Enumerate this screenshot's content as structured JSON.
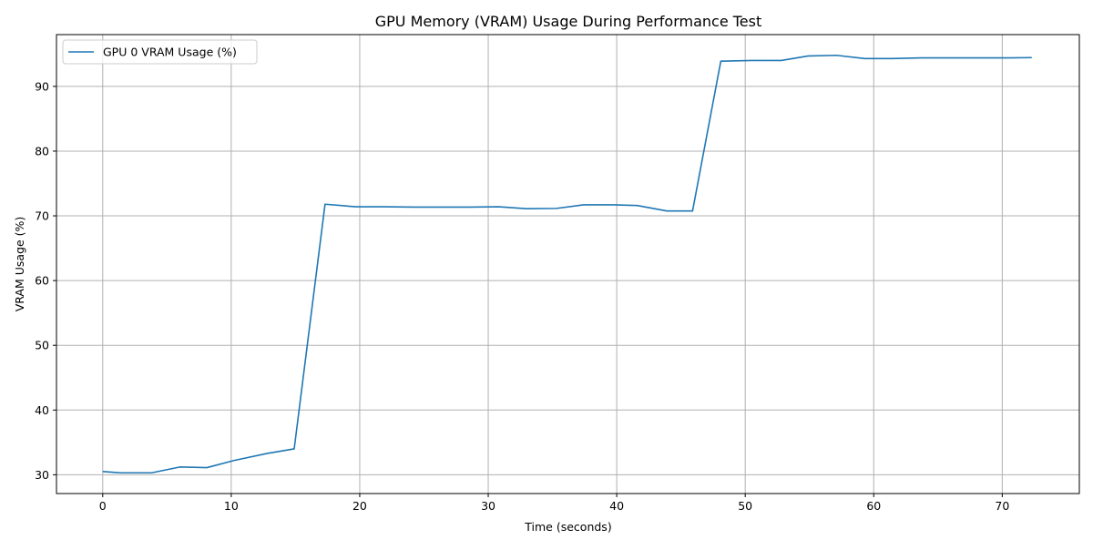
{
  "chart_data": {
    "type": "line",
    "title": "GPU Memory (VRAM) Usage During Performance Test",
    "xlabel": "Time (seconds)",
    "ylabel": "VRAM Usage (%)",
    "xlim": [
      -3.6,
      76.0
    ],
    "ylim": [
      27.1,
      98.0
    ],
    "xticks": [
      0,
      10,
      20,
      30,
      40,
      50,
      60,
      70
    ],
    "yticks": [
      30,
      40,
      50,
      60,
      70,
      80,
      90
    ],
    "grid": true,
    "legend_position": "top-left",
    "series": [
      {
        "name": "GPU 0 VRAM Usage (%)",
        "color": "#1f77b4",
        "x": [
          0.0,
          1.4,
          3.8,
          6.0,
          8.1,
          10.2,
          12.8,
          14.9,
          17.3,
          19.7,
          21.9,
          24.2,
          26.5,
          28.6,
          30.8,
          33.0,
          35.3,
          37.4,
          39.8,
          41.6,
          43.9,
          45.9,
          48.1,
          50.5,
          52.8,
          54.9,
          57.1,
          59.3,
          61.4,
          63.7,
          66.1,
          68.3,
          70.5,
          72.3
        ],
        "y": [
          30.5,
          30.3,
          30.3,
          31.2,
          31.1,
          32.2,
          33.3,
          34.0,
          71.8,
          71.4,
          71.4,
          71.35,
          71.35,
          71.35,
          71.4,
          71.1,
          71.15,
          71.7,
          71.7,
          71.6,
          70.75,
          70.75,
          93.9,
          94.0,
          94.0,
          94.7,
          94.8,
          94.3,
          94.3,
          94.4,
          94.4,
          94.4,
          94.4,
          94.45
        ]
      }
    ]
  }
}
